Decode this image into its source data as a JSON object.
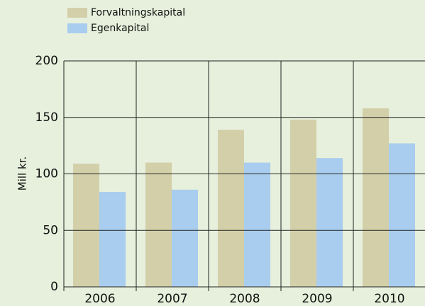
{
  "chart_data": {
    "type": "bar",
    "y_label": "Mill kr.",
    "categories": [
      "2006",
      "2007",
      "2008",
      "2009",
      "2010"
    ],
    "series": [
      {
        "name": "Forvaltningskapital",
        "color": "#d3cfa9",
        "values": [
          109,
          110,
          139,
          148,
          158
        ]
      },
      {
        "name": "Egenkapital",
        "color": "#a9cdee",
        "values": [
          84,
          86,
          110,
          114,
          127
        ]
      }
    ],
    "ylim": [
      0,
      200
    ],
    "yticks": [
      0,
      50,
      100,
      150,
      200
    ],
    "grid": true,
    "legend": "top-left"
  }
}
